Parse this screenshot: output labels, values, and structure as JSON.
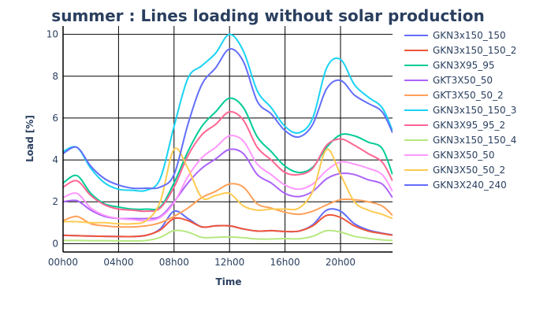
{
  "chart_data": {
    "type": "line",
    "title": "summer : Lines loading without solar production",
    "xlabel": "Time",
    "ylabel": "Load [%]",
    "x_ticks": [
      "00h00",
      "04h00",
      "08h00",
      "12h00",
      "16h00",
      "20h00"
    ],
    "x_tick_hours": [
      0,
      4,
      8,
      12,
      16,
      20
    ],
    "xlim_hours": [
      0,
      23.75
    ],
    "ylim": [
      -0.4,
      10.4
    ],
    "y_ticks": [
      0,
      2,
      4,
      6,
      8,
      10
    ],
    "grid": true,
    "legend_position": "right",
    "x_hours": [
      0,
      1,
      2,
      3,
      4,
      5,
      6,
      7,
      8,
      9,
      10,
      11,
      12,
      13,
      14,
      15,
      16,
      17,
      18,
      19,
      20,
      21,
      22,
      23,
      23.75
    ],
    "series": [
      {
        "name": "GKN3x150_150",
        "color": "#636efa",
        "values": [
          0.4,
          0.38,
          0.36,
          0.35,
          0.34,
          0.34,
          0.4,
          0.7,
          1.55,
          1.2,
          0.8,
          0.85,
          0.85,
          0.7,
          0.6,
          0.62,
          0.58,
          0.6,
          0.9,
          1.6,
          1.55,
          0.95,
          0.65,
          0.5,
          0.42
        ]
      },
      {
        "name": "GKN3x150_150_2",
        "color": "#ef553b",
        "values": [
          0.4,
          0.38,
          0.36,
          0.35,
          0.34,
          0.34,
          0.4,
          0.65,
          1.2,
          1.1,
          0.8,
          0.85,
          0.85,
          0.7,
          0.6,
          0.62,
          0.58,
          0.6,
          0.85,
          1.35,
          1.25,
          0.85,
          0.6,
          0.48,
          0.4
        ]
      },
      {
        "name": "GKN3X95_95",
        "color": "#00cc96",
        "values": [
          2.9,
          3.25,
          2.4,
          1.9,
          1.75,
          1.65,
          1.65,
          1.75,
          2.9,
          4.4,
          5.6,
          6.3,
          6.95,
          6.5,
          5.1,
          4.4,
          3.7,
          3.4,
          3.65,
          4.6,
          5.2,
          5.15,
          4.85,
          4.55,
          3.3
        ]
      },
      {
        "name": "GKT3X50_50",
        "color": "#ab63fa",
        "values": [
          2.0,
          2.05,
          1.6,
          1.3,
          1.2,
          1.2,
          1.2,
          1.3,
          2.0,
          2.9,
          3.6,
          4.05,
          4.5,
          4.3,
          3.3,
          2.9,
          2.4,
          2.25,
          2.5,
          3.1,
          3.35,
          3.3,
          3.05,
          2.85,
          2.2
        ]
      },
      {
        "name": "GKT3X50_50_2",
        "color": "#ffa15a",
        "values": [
          1.1,
          1.3,
          0.95,
          0.85,
          0.8,
          0.8,
          0.85,
          1.0,
          1.3,
          1.7,
          2.2,
          2.5,
          2.85,
          2.7,
          1.9,
          1.7,
          1.5,
          1.4,
          1.55,
          1.85,
          2.1,
          2.1,
          2.0,
          1.8,
          1.35
        ]
      },
      {
        "name": "GKN3x150_150_3",
        "color": "#19d3f3",
        "values": [
          4.4,
          4.6,
          3.6,
          2.9,
          2.6,
          2.55,
          2.55,
          3.1,
          5.6,
          7.9,
          8.5,
          9.1,
          10.0,
          9.2,
          7.3,
          6.5,
          5.6,
          5.3,
          6.0,
          8.4,
          8.8,
          7.6,
          7.0,
          6.5,
          5.4
        ]
      },
      {
        "name": "GKN3X95_95_2",
        "color": "#ff6692",
        "values": [
          2.7,
          3.0,
          2.3,
          1.85,
          1.65,
          1.6,
          1.55,
          1.7,
          2.7,
          4.2,
          5.2,
          5.7,
          6.3,
          5.9,
          4.6,
          4.0,
          3.4,
          3.3,
          3.6,
          4.7,
          5.0,
          4.7,
          4.3,
          3.9,
          3.0
        ]
      },
      {
        "name": "GKN3x150_150_4",
        "color": "#b6e880",
        "values": [
          0.15,
          0.15,
          0.14,
          0.14,
          0.13,
          0.13,
          0.15,
          0.3,
          0.62,
          0.55,
          0.3,
          0.3,
          0.32,
          0.28,
          0.22,
          0.22,
          0.24,
          0.23,
          0.35,
          0.62,
          0.55,
          0.35,
          0.25,
          0.18,
          0.15
        ]
      },
      {
        "name": "GKN3X50_50",
        "color": "#ff97ff",
        "values": [
          2.2,
          2.4,
          1.7,
          1.35,
          1.2,
          1.15,
          1.1,
          1.25,
          1.95,
          3.2,
          4.1,
          4.6,
          5.15,
          4.9,
          3.8,
          3.3,
          2.8,
          2.6,
          2.85,
          3.5,
          3.9,
          3.8,
          3.6,
          3.3,
          2.5
        ]
      },
      {
        "name": "GKN3X50_50_2",
        "color": "#fecb52",
        "values": [
          1.05,
          1.05,
          1.0,
          1.0,
          0.95,
          0.95,
          1.1,
          2.0,
          4.5,
          3.6,
          2.2,
          2.3,
          2.4,
          1.8,
          1.6,
          1.65,
          1.65,
          1.7,
          2.5,
          4.5,
          3.3,
          2.0,
          1.6,
          1.4,
          1.2
        ]
      },
      {
        "name": "GKN3X240_240",
        "color": "#636efa",
        "values": [
          4.3,
          4.6,
          3.7,
          3.1,
          2.8,
          2.65,
          2.65,
          2.7,
          3.3,
          5.7,
          7.6,
          8.4,
          9.3,
          8.7,
          6.8,
          6.2,
          5.4,
          5.1,
          5.7,
          7.4,
          7.8,
          7.1,
          6.7,
          6.3,
          5.3
        ]
      }
    ]
  }
}
